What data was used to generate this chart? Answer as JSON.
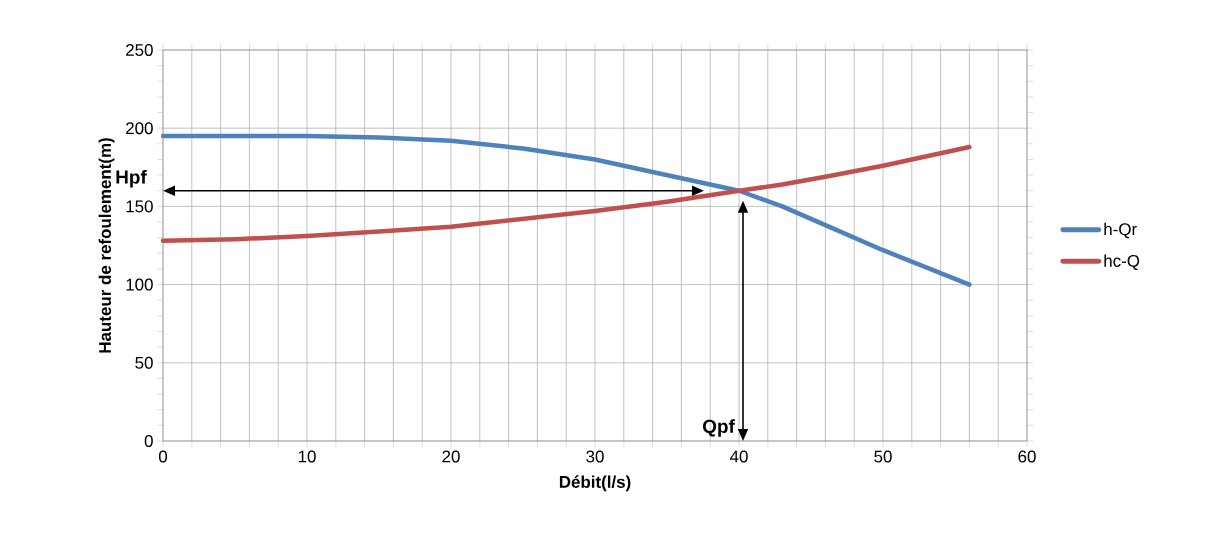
{
  "chart_data": {
    "type": "line",
    "xlabel": "Débit(l/s)",
    "ylabel": "Hauteur de refoulement(m)",
    "x": [
      0,
      5,
      10,
      15,
      20,
      25,
      30,
      35,
      40,
      43,
      46,
      50,
      56
    ],
    "series": [
      {
        "name": "h-Qr",
        "color": "#4f81bd",
        "values": [
          195,
          195,
          195,
          194,
          192,
          187,
          180,
          170,
          160,
          150,
          138,
          122,
          100
        ]
      },
      {
        "name": "hc-Q",
        "color": "#c0504d",
        "values": [
          128,
          129,
          131,
          134,
          137,
          142,
          147,
          153,
          160,
          164,
          169,
          176,
          188
        ]
      }
    ],
    "xlim": [
      0,
      60
    ],
    "xticks": [
      0,
      {
        "value": 2,
        "label": null
      },
      {
        "value": 4,
        "label": null
      },
      {
        "value": 6,
        "label": null
      },
      {
        "value": 8,
        "label": null
      },
      10,
      {
        "value": 12,
        "label": null
      },
      {
        "value": 14,
        "label": null
      },
      {
        "value": 16,
        "label": null
      },
      {
        "value": 18,
        "label": null
      },
      20,
      {
        "value": 22,
        "label": null
      },
      {
        "value": 24,
        "label": null
      },
      {
        "value": 26,
        "label": null
      },
      {
        "value": 28,
        "label": null
      },
      30,
      {
        "value": 32,
        "label": null
      },
      {
        "value": 34,
        "label": null
      },
      {
        "value": 36,
        "label": null
      },
      {
        "value": 38,
        "label": null
      },
      40,
      {
        "value": 42,
        "label": null
      },
      {
        "value": 44,
        "label": null
      },
      {
        "value": 46,
        "label": null
      },
      {
        "value": 48,
        "label": null
      },
      50,
      {
        "value": 52,
        "label": null
      },
      {
        "value": 54,
        "label": null
      },
      {
        "value": 56,
        "label": null
      },
      {
        "value": 58,
        "label": null
      },
      60
    ],
    "ylim": [
      0,
      250
    ],
    "yticks": [
      0,
      50,
      100,
      150,
      200,
      250
    ],
    "grid": true,
    "legend": "right",
    "marker": "none",
    "line_style": "solid",
    "annotations": [
      "Hpf",
      "Qpf"
    ]
  }
}
